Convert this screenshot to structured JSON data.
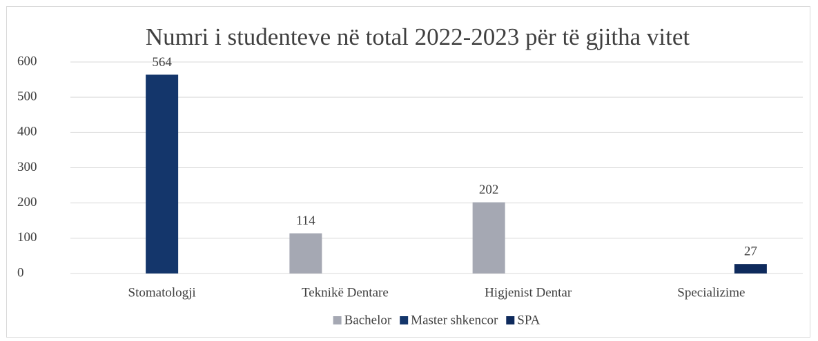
{
  "chart_data": {
    "type": "bar",
    "title": "Numri i studenteve në total 2022-2023 për të gjitha vitet",
    "categories": [
      "Stomatologji",
      "Teknikë Dentare",
      "Higjenist Dentar",
      "Specializime"
    ],
    "series": [
      {
        "name": "Bachelor",
        "color": "#a5a8b3",
        "values": [
          null,
          114,
          202,
          null
        ]
      },
      {
        "name": "Master shkencor",
        "color": "#14366b",
        "values": [
          564,
          null,
          null,
          null
        ]
      },
      {
        "name": "SPA",
        "color": "#0e2a5c",
        "values": [
          null,
          null,
          null,
          27
        ]
      }
    ],
    "ylim": [
      0,
      600
    ],
    "yticks": [
      0,
      100,
      200,
      300,
      400,
      500,
      600
    ],
    "grid": true,
    "legend": "bottom"
  }
}
